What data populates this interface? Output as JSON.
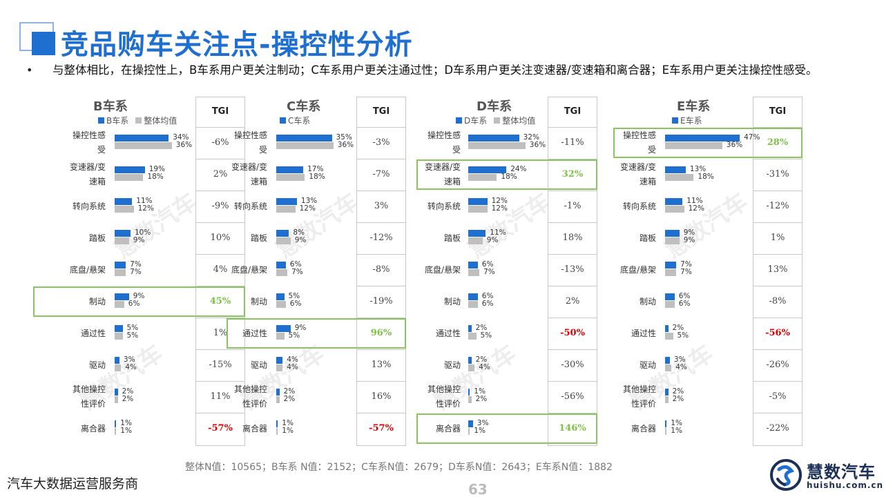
{
  "page": {
    "title": "竞品购车关注点-操控性分析",
    "bullet": "•",
    "summary": "与整体相比，在操控性上，B车系用户更关注制动；C车系用户更关注通过性；D车系用户更关注变速器/变速箱和离合器；E车系用户更关注操控性感受。",
    "tgi_header": "TGI",
    "footnote": "整体N值：10565；B车系 N值：2152；C车系N值：2679；D车系N值：2643；E车系N值：1882",
    "company": "汽车大数据运营服务商",
    "page_number": "63",
    "logo_name": "慧数汽车",
    "logo_url": "huishu.com.cn",
    "watermark": "慧数汽车",
    "colors": {
      "brand": "#1e6fcf",
      "overall": "#bfbfbf",
      "positive_highlight": "#7cc245",
      "negative": "#e00000"
    }
  },
  "chart_data": [
    {
      "type": "bar",
      "orientation": "horizontal",
      "title": "B车系",
      "series": [
        {
          "name": "B车系",
          "values": [
            34,
            19,
            11,
            10,
            7,
            9,
            5,
            3,
            2,
            1
          ]
        },
        {
          "name": "整体均值",
          "values": [
            36,
            18,
            12,
            9,
            7,
            6,
            5,
            4,
            2,
            1
          ]
        }
      ],
      "categories": [
        "操控性感受",
        "变速器/变速箱",
        "转向系统",
        "踏板",
        "底盘/悬架",
        "制动",
        "通过性",
        "驱动",
        "其他操控性评价",
        "离合器"
      ],
      "category_display": [
        "操控性感\n受",
        "变速器/变\n速箱",
        "转向系统",
        "踏板",
        "底盘/悬架",
        "制动",
        "通过性",
        "驱动",
        "其他操控\n性评价",
        "离合器"
      ],
      "unit": "%",
      "tgi": [
        "-6%",
        "2%",
        "-9%",
        "10%",
        "4%",
        "45%",
        "1%",
        "-15%",
        "11%",
        "-57%"
      ],
      "tgi_style": [
        "",
        "",
        "",
        "",
        "",
        "green",
        "",
        "",
        "",
        "red"
      ],
      "highlight_row": 5
    },
    {
      "type": "bar",
      "orientation": "horizontal",
      "title": "C车系",
      "series": [
        {
          "name": "C车系",
          "values": [
            35,
            17,
            13,
            8,
            6,
            5,
            9,
            4,
            2,
            1
          ]
        },
        {
          "name": "整体均值",
          "values": [
            36,
            18,
            12,
            9,
            7,
            6,
            5,
            4,
            2,
            1
          ]
        }
      ],
      "categories": [
        "操控性感受",
        "变速器/变速箱",
        "转向系统",
        "踏板",
        "底盘/悬架",
        "制动",
        "通过性",
        "驱动",
        "其他操控性评价",
        "离合器"
      ],
      "category_display": [
        "操控性感\n受",
        "变速器/变\n速箱",
        "转向系统",
        "踏板",
        "底盘/悬架",
        "制动",
        "通过性",
        "驱动",
        "其他操控\n性评价",
        "离合器"
      ],
      "unit": "%",
      "tgi": [
        "-3%",
        "-7%",
        "3%",
        "-12%",
        "-8%",
        "-19%",
        "96%",
        "13%",
        "16%",
        "-57%"
      ],
      "tgi_style": [
        "",
        "",
        "",
        "",
        "",
        "",
        "green",
        "",
        "",
        "red"
      ],
      "highlight_row": 6
    },
    {
      "type": "bar",
      "orientation": "horizontal",
      "title": "D车系",
      "series": [
        {
          "name": "D车系",
          "values": [
            32,
            24,
            12,
            11,
            6,
            6,
            2,
            2,
            1,
            3
          ]
        },
        {
          "name": "整体均值",
          "values": [
            36,
            18,
            12,
            9,
            7,
            6,
            5,
            4,
            2,
            1
          ]
        }
      ],
      "categories": [
        "操控性感受",
        "变速器/变速箱",
        "转向系统",
        "踏板",
        "底盘/悬架",
        "制动",
        "通过性",
        "驱动",
        "其他操控性评价",
        "离合器"
      ],
      "category_display": [
        "操控性感\n受",
        "变速器/变\n速箱",
        "转向系统",
        "踏板",
        "底盘/悬架",
        "制动",
        "通过性",
        "驱动",
        "其他操控\n性评价",
        "离合器"
      ],
      "unit": "%",
      "tgi": [
        "-11%",
        "32%",
        "-1%",
        "18%",
        "-13%",
        "2%",
        "-50%",
        "-30%",
        "-56%",
        "146%"
      ],
      "tgi_style": [
        "",
        "green",
        "",
        "",
        "",
        "",
        "red",
        "",
        "",
        "green"
      ],
      "highlight_rows": [
        1,
        9
      ]
    },
    {
      "type": "bar",
      "orientation": "horizontal",
      "title": "E车系",
      "series": [
        {
          "name": "E车系",
          "values": [
            47,
            13,
            11,
            9,
            7,
            6,
            2,
            3,
            2,
            1
          ]
        },
        {
          "name": "整体均值",
          "values": [
            36,
            18,
            12,
            9,
            7,
            6,
            5,
            4,
            2,
            1
          ]
        }
      ],
      "categories": [
        "操控性感受",
        "变速器/变速箱",
        "转向系统",
        "踏板",
        "底盘/悬架",
        "制动",
        "通过性",
        "驱动",
        "其他操控性评价",
        "离合器"
      ],
      "category_display": [
        "操控性感\n受",
        "变速器/变\n速箱",
        "转向系统",
        "踏板",
        "底盘/悬架",
        "制动",
        "通过性",
        "驱动",
        "其他操控\n性评价",
        "离合器"
      ],
      "unit": "%",
      "tgi": [
        "28%",
        "-31%",
        "-12%",
        "1%",
        "13%",
        "-8%",
        "-56%",
        "-26%",
        "-5%",
        "-22%"
      ],
      "tgi_style": [
        "green",
        "",
        "",
        "",
        "",
        "",
        "red",
        "",
        "",
        ""
      ],
      "highlight_row": 0,
      "legend_shows_overall": false
    }
  ]
}
